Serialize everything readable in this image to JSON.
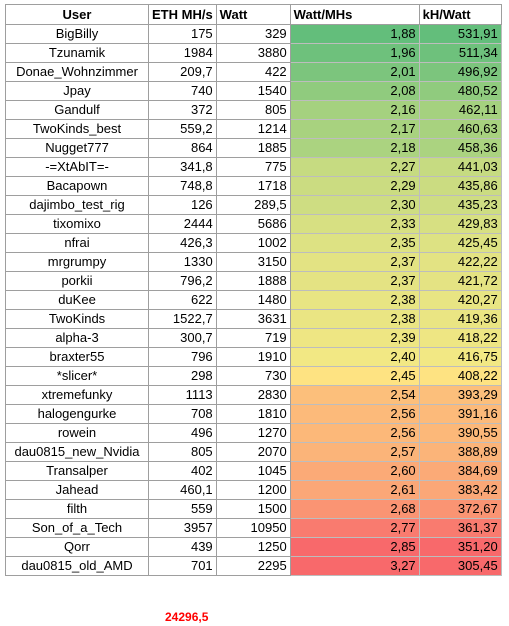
{
  "headers": {
    "user": "User",
    "eth": "ETH MH/s",
    "watt": "Watt",
    "watt_per_mh": "Watt/MHs",
    "kh_per_watt": "kH/Watt"
  },
  "rows": [
    {
      "user": "BigBilly",
      "eth": "175",
      "watt": "329",
      "wpm": "1,88",
      "khw": "531,91",
      "color": "#63be7b"
    },
    {
      "user": "Tzunamik",
      "eth": "1984",
      "watt": "3880",
      "wpm": "1,96",
      "khw": "511,34",
      "color": "#6ec17c"
    },
    {
      "user": "Donae_Wohnzimmer",
      "eth": "209,7",
      "watt": "422",
      "wpm": "2,01",
      "khw": "496,92",
      "color": "#7cc57d"
    },
    {
      "user": "Jpay",
      "eth": "740",
      "watt": "1540",
      "wpm": "2,08",
      "khw": "480,52",
      "color": "#90cb7e"
    },
    {
      "user": "Gandulf",
      "eth": "372",
      "watt": "805",
      "wpm": "2,16",
      "khw": "462,11",
      "color": "#a5d17f"
    },
    {
      "user": "TwoKinds_best",
      "eth": "559,2",
      "watt": "1214",
      "wpm": "2,17",
      "khw": "460,63",
      "color": "#a8d27f"
    },
    {
      "user": "Nugget777",
      "eth": "864",
      "watt": "1885",
      "wpm": "2,18",
      "khw": "458,36",
      "color": "#abd380"
    },
    {
      "user": "-=XtAbIT=-",
      "eth": "341,8",
      "watt": "775",
      "wpm": "2,27",
      "khw": "441,03",
      "color": "#c6db81"
    },
    {
      "user": "Bacapown",
      "eth": "748,8",
      "watt": "1718",
      "wpm": "2,29",
      "khw": "435,86",
      "color": "#cbdc81"
    },
    {
      "user": "dajimbo_test_rig",
      "eth": "126",
      "watt": "289,5",
      "wpm": "2,30",
      "khw": "435,23",
      "color": "#cedd82"
    },
    {
      "user": "tixomixo",
      "eth": "2444",
      "watt": "5686",
      "wpm": "2,33",
      "khw": "429,83",
      "color": "#d7e082"
    },
    {
      "user": "nfrai",
      "eth": "426,3",
      "watt": "1002",
      "wpm": "2,35",
      "khw": "425,45",
      "color": "#dde283"
    },
    {
      "user": "mrgrumpy",
      "eth": "1330",
      "watt": "3150",
      "wpm": "2,37",
      "khw": "422,22",
      "color": "#e3e383"
    },
    {
      "user": "porkii",
      "eth": "796,2",
      "watt": "1888",
      "wpm": "2,37",
      "khw": "421,72",
      "color": "#e4e383"
    },
    {
      "user": "duKee",
      "eth": "622",
      "watt": "1480",
      "wpm": "2,38",
      "khw": "420,27",
      "color": "#e8e583"
    },
    {
      "user": "TwoKinds",
      "eth": "1522,7",
      "watt": "3631",
      "wpm": "2,38",
      "khw": "419,36",
      "color": "#eae583"
    },
    {
      "user": "alpha-3",
      "eth": "300,7",
      "watt": "719",
      "wpm": "2,39",
      "khw": "418,22",
      "color": "#eee683"
    },
    {
      "user": "braxter55",
      "eth": "796",
      "watt": "1910",
      "wpm": "2,40",
      "khw": "416,75",
      "color": "#f2e884"
    },
    {
      "user": "*slicer*",
      "eth": "298",
      "watt": "730",
      "wpm": "2,45",
      "khw": "408,22",
      "color": "#fee382"
    },
    {
      "user": "xtremefunky",
      "eth": "1113",
      "watt": "2830",
      "wpm": "2,54",
      "khw": "393,29",
      "color": "#fcbf7b"
    },
    {
      "user": "halogengurke",
      "eth": "708",
      "watt": "1810",
      "wpm": "2,56",
      "khw": "391,16",
      "color": "#fcba7a"
    },
    {
      "user": "rowein",
      "eth": "496",
      "watt": "1270",
      "wpm": "2,56",
      "khw": "390,55",
      "color": "#fcb879"
    },
    {
      "user": "dau0815_new_Nvidia",
      "eth": "805",
      "watt": "2070",
      "wpm": "2,57",
      "khw": "388,89",
      "color": "#fbb479"
    },
    {
      "user": "Transalper",
      "eth": "402",
      "watt": "1045",
      "wpm": "2,60",
      "khw": "384,69",
      "color": "#fbaa77"
    },
    {
      "user": "Jahead",
      "eth": "460,1",
      "watt": "1200",
      "wpm": "2,61",
      "khw": "383,42",
      "color": "#fba777"
    },
    {
      "user": "filth",
      "eth": "559",
      "watt": "1500",
      "wpm": "2,68",
      "khw": "372,67",
      "color": "#fa9473"
    },
    {
      "user": "Son_of_a_Tech",
      "eth": "3957",
      "watt": "10950",
      "wpm": "2,77",
      "khw": "361,37",
      "color": "#f97b6f"
    },
    {
      "user": "Qorr",
      "eth": "439",
      "watt": "1250",
      "wpm": "2,85",
      "khw": "351,20",
      "color": "#f8696b"
    },
    {
      "user": "dau0815_old_AMD",
      "eth": "701",
      "watt": "2295",
      "wpm": "3,27",
      "khw": "305,45",
      "color": "#f8696b"
    }
  ],
  "total_eth": "24296,5"
}
